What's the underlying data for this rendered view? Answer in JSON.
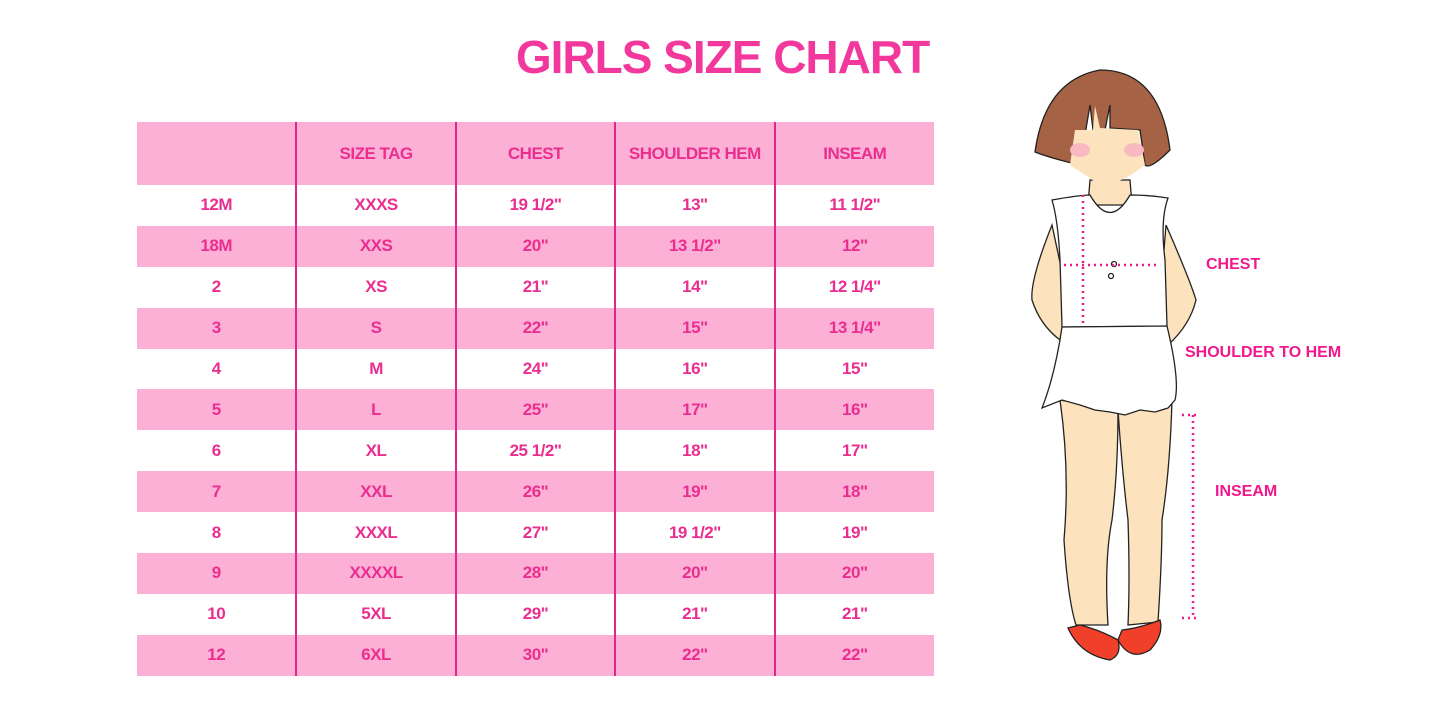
{
  "title": "GIRLS SIZE CHART",
  "table": {
    "headers": [
      "",
      "SIZE TAG",
      "CHEST",
      "SHOULDER HEM",
      "INSEAM"
    ],
    "rows": [
      [
        "12M",
        "XXXS",
        "19 1/2\"",
        "13\"",
        "11 1/2\""
      ],
      [
        "18M",
        "XXS",
        "20\"",
        "13 1/2\"",
        "12\""
      ],
      [
        "2",
        "XS",
        "21\"",
        "14\"",
        "12 1/4\""
      ],
      [
        "3",
        "S",
        "22\"",
        "15\"",
        "13 1/4\""
      ],
      [
        "4",
        "M",
        "24\"",
        "16\"",
        "15\""
      ],
      [
        "5",
        "L",
        "25\"",
        "17\"",
        "16\""
      ],
      [
        "6",
        "XL",
        "25 1/2\"",
        "18\"",
        "17\""
      ],
      [
        "7",
        "XXL",
        "26\"",
        "19\"",
        "18\""
      ],
      [
        "8",
        "XXXL",
        "27\"",
        "19 1/2\"",
        "19\""
      ],
      [
        "9",
        "XXXXL",
        "28\"",
        "20\"",
        "20\""
      ],
      [
        "10",
        "5XL",
        "29\"",
        "21\"",
        "21\""
      ],
      [
        "12",
        "6XL",
        "30\"",
        "22\"",
        "22\""
      ]
    ]
  },
  "diagram": {
    "labels": {
      "chest": "CHEST",
      "shoulder_to_hem": "SHOULDER TO HEM",
      "inseam": "INSEAM"
    }
  },
  "colors": {
    "accent": "#f2389c",
    "row_pink": "#fdb0d6",
    "divider": "#e0268a"
  }
}
